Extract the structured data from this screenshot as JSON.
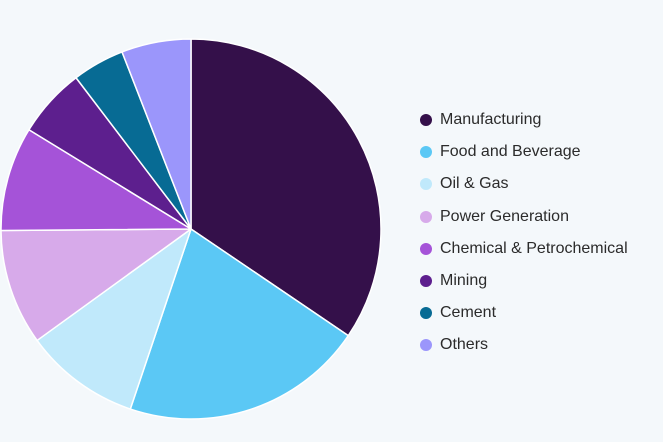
{
  "chart_data": {
    "type": "pie",
    "categories": [
      "Manufacturing",
      "Food and Beverage",
      "Oil & Gas",
      "Power Generation",
      "Chemical & Petrochemical",
      "Mining",
      "Cement",
      "Others"
    ],
    "values": [
      35,
      21,
      10,
      10,
      9,
      6,
      4.5,
      6
    ],
    "colors": [
      "#34104a",
      "#5bc8f5",
      "#c0e9fb",
      "#d7aaea",
      "#a553d8",
      "#5d1f8e",
      "#076b94",
      "#9b96fb"
    ],
    "start_angle_deg": 0,
    "direction": "clockwise",
    "legend_position": "right"
  }
}
